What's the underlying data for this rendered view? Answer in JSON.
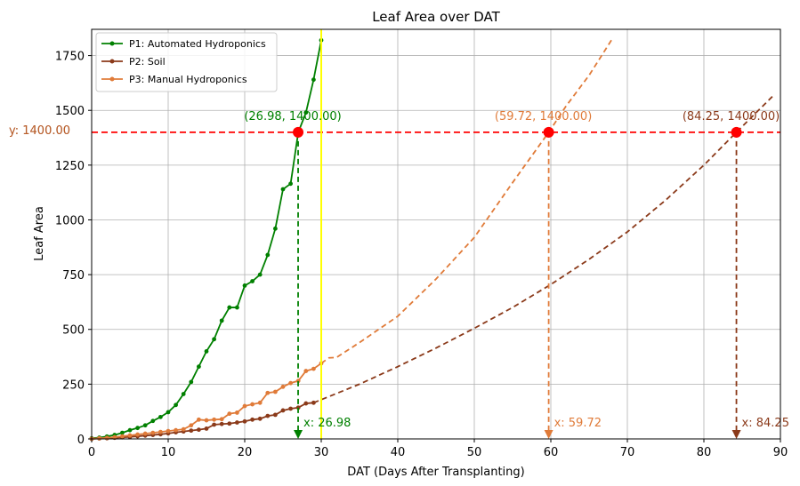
{
  "chart_data": {
    "type": "line",
    "title": "Leaf Area over DAT",
    "xlabel": "DAT (Days After Transplanting)",
    "ylabel": "Leaf Area",
    "xlim": [
      0,
      90
    ],
    "ylim": [
      0,
      1870
    ],
    "xticks": [
      0,
      10,
      20,
      30,
      40,
      50,
      60,
      70,
      80,
      90
    ],
    "yticks": [
      0,
      250,
      500,
      750,
      1000,
      1250,
      1500,
      1750
    ],
    "grid": true,
    "legend_position": "top-left",
    "series": [
      {
        "name": "P1: Automated Hydroponics",
        "color": "#008000",
        "x": [
          0,
          1,
          2,
          3,
          4,
          5,
          6,
          7,
          8,
          9,
          10,
          11,
          12,
          13,
          14,
          15,
          16,
          17,
          18,
          19,
          20,
          21,
          22,
          23,
          24,
          25,
          26,
          27,
          28,
          29,
          30
        ],
        "values": [
          3,
          6,
          11,
          18,
          28,
          40,
          50,
          62,
          82,
          100,
          122,
          155,
          205,
          260,
          330,
          400,
          455,
          540,
          600,
          600,
          700,
          720,
          750,
          840,
          960,
          1140,
          1165,
          1400,
          1490,
          1640,
          1820
        ]
      },
      {
        "name": "P2: Soil",
        "color": "#8B3A1A",
        "x": [
          0,
          1,
          2,
          3,
          4,
          5,
          6,
          7,
          8,
          9,
          10,
          11,
          12,
          13,
          14,
          15,
          16,
          17,
          18,
          19,
          20,
          21,
          22,
          23,
          24,
          25,
          26,
          27,
          28,
          29
        ],
        "values": [
          0,
          2,
          3,
          5,
          7,
          9,
          12,
          15,
          18,
          21,
          25,
          30,
          34,
          38,
          42,
          47,
          65,
          68,
          70,
          75,
          80,
          88,
          92,
          105,
          110,
          130,
          138,
          143,
          162,
          165
        ]
      },
      {
        "name": "P3: Manual Hydroponics",
        "color": "#E07B39",
        "x": [
          0,
          1,
          2,
          3,
          4,
          5,
          6,
          7,
          8,
          9,
          10,
          11,
          12,
          13,
          14,
          15,
          16,
          17,
          18,
          19,
          20,
          21,
          22,
          23,
          24,
          25,
          26,
          27,
          28,
          29,
          30
        ],
        "values": [
          1,
          3,
          5,
          8,
          12,
          16,
          20,
          24,
          28,
          32,
          36,
          40,
          44,
          62,
          88,
          85,
          88,
          90,
          115,
          120,
          150,
          158,
          165,
          210,
          215,
          238,
          255,
          265,
          310,
          320,
          345
        ]
      }
    ],
    "projections": [
      {
        "series": 0,
        "x": [
          26.98
        ],
        "values": [
          1400
        ]
      },
      {
        "series": 1,
        "x": [
          29,
          35,
          40,
          45,
          50,
          55,
          60,
          65,
          70,
          75,
          80,
          84.25,
          89
        ],
        "values": [
          165,
          250,
          330,
          415,
          505,
          600,
          705,
          820,
          945,
          1090,
          1250,
          1400,
          1565
        ]
      },
      {
        "series": 2,
        "x": [
          30,
          31,
          32,
          35,
          40,
          45,
          50,
          52,
          55,
          59.72,
          62,
          65,
          68
        ],
        "values": [
          345,
          370,
          372,
          440,
          560,
          730,
          920,
          1020,
          1170,
          1400,
          1520,
          1660,
          1825
        ]
      }
    ],
    "threshold_y": 1400,
    "threshold_label": "y: 1400.00",
    "vertical_line_x": 30,
    "intersections": [
      {
        "x": 26.98,
        "y": 1400,
        "point_label": "(26.98, 1400.00)",
        "x_label": "x: 26.98",
        "color": "#008000"
      },
      {
        "x": 59.72,
        "y": 1400,
        "point_label": "(59.72, 1400.00)",
        "x_label": "x: 59.72",
        "color": "#E07B39"
      },
      {
        "x": 84.25,
        "y": 1400,
        "point_label": "(84.25, 1400.00)",
        "x_label": "x: 84.25",
        "color": "#8B3A1A"
      }
    ],
    "colors": {
      "threshold": "#FF0000",
      "vertical_line": "#FFFF00",
      "grid": "#b0b0b0",
      "label_orange": "#E07B39",
      "label_brown": "#8B3A1A"
    }
  }
}
